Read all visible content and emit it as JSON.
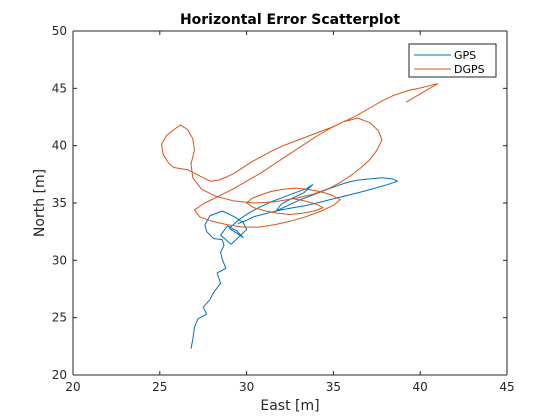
{
  "chart_data": {
    "type": "line",
    "title": "Horizontal Error Scatterplot",
    "xlabel": "East [m]",
    "ylabel": "North [m]",
    "xlim": [
      20,
      45
    ],
    "ylim": [
      20,
      50
    ],
    "xticks": [
      20,
      25,
      30,
      35,
      40,
      45
    ],
    "yticks": [
      20,
      25,
      30,
      35,
      40,
      45,
      50
    ],
    "grid": false,
    "legend_position": "top-right",
    "series": [
      {
        "name": "GPS",
        "color": "#0072BD",
        "x": [
          26.8,
          26.9,
          27.0,
          27.2,
          27.7,
          27.5,
          27.9,
          28.1,
          28.5,
          28.3,
          28.8,
          28.6,
          28.5,
          28.7,
          28.6,
          28.1,
          27.7,
          27.6,
          27.9,
          28.6,
          29.3,
          29.8,
          30.0,
          29.6,
          29.1,
          28.5,
          28.9,
          29.4,
          29.8,
          29.0,
          29.6,
          30.1,
          30.7,
          31.4,
          32.1,
          32.8,
          33.4,
          33.8,
          33.3,
          32.6,
          32.0,
          31.7,
          32.4,
          33.1,
          33.8,
          34.5,
          35.2,
          35.8,
          36.4,
          37.1,
          37.8,
          38.4,
          38.7,
          38.1,
          37.4,
          36.7,
          35.9,
          35.1,
          34.3,
          33.5,
          32.7,
          32.0,
          31.4,
          30.9,
          30.4,
          30.0,
          29.5
        ],
        "y": [
          22.3,
          23.1,
          24.2,
          24.9,
          25.3,
          25.9,
          26.6,
          27.2,
          28.0,
          28.9,
          29.3,
          30.1,
          30.7,
          31.3,
          31.8,
          31.9,
          32.5,
          33.1,
          33.9,
          34.3,
          33.8,
          33.3,
          32.7,
          32.1,
          31.4,
          32.2,
          33.0,
          32.6,
          32.0,
          32.8,
          33.6,
          34.1,
          34.6,
          35.1,
          35.5,
          35.9,
          36.2,
          36.6,
          35.9,
          35.4,
          34.9,
          34.3,
          34.8,
          35.3,
          35.7,
          36.1,
          36.5,
          36.8,
          37.0,
          37.1,
          37.2,
          37.1,
          36.9,
          36.6,
          36.3,
          36.0,
          35.7,
          35.4,
          35.1,
          34.8,
          34.6,
          34.4,
          34.2,
          34.0,
          33.8,
          33.5,
          33.2
        ]
      },
      {
        "name": "DGPS",
        "color": "#D95319",
        "x": [
          39.2,
          40.1,
          41.0,
          40.2,
          39.3,
          38.5,
          37.8,
          37.0,
          36.3,
          35.6,
          34.9,
          34.2,
          33.5,
          32.8,
          32.1,
          31.4,
          30.8,
          30.3,
          29.9,
          29.6,
          29.3,
          28.9,
          28.4,
          27.9,
          27.5,
          27.0,
          26.6,
          26.2,
          25.8,
          25.5,
          25.2,
          25.1,
          25.4,
          25.9,
          26.2,
          26.6,
          26.9,
          27.0,
          26.8,
          26.9,
          27.4,
          28.2,
          29.2,
          30.4,
          31.6,
          32.8,
          33.9,
          34.8,
          35.4,
          36.0,
          36.6,
          37.1,
          37.5,
          37.8,
          37.6,
          37.1,
          36.4,
          35.6,
          34.8,
          34.0,
          33.2,
          32.4,
          31.6,
          30.8,
          30.0,
          29.2,
          28.4,
          27.6,
          27.0,
          27.3,
          28.0,
          28.9,
          29.8,
          30.7,
          31.6,
          32.5,
          33.4,
          34.3,
          35.0,
          35.4,
          34.9,
          34.2,
          33.5,
          32.8,
          32.1,
          31.4,
          30.8,
          30.3,
          30.0,
          30.4,
          31.1,
          31.8,
          32.5,
          33.2,
          33.9,
          34.4,
          34.0,
          33.3,
          32.6
        ],
        "y": [
          43.8,
          44.6,
          45.4,
          45.1,
          44.8,
          44.4,
          43.9,
          43.2,
          42.6,
          42.1,
          41.6,
          41.2,
          40.8,
          40.4,
          40.0,
          39.5,
          39.0,
          38.6,
          38.2,
          37.9,
          37.6,
          37.3,
          37.0,
          36.9,
          37.2,
          37.6,
          37.9,
          38.0,
          38.1,
          38.5,
          39.2,
          40.1,
          40.9,
          41.5,
          41.8,
          41.4,
          40.6,
          39.6,
          38.4,
          37.2,
          36.2,
          35.6,
          35.2,
          35.0,
          35.1,
          35.4,
          35.8,
          36.3,
          36.8,
          37.4,
          38.1,
          38.8,
          39.6,
          40.5,
          41.3,
          42.0,
          42.4,
          42.1,
          41.5,
          40.8,
          40.0,
          39.2,
          38.4,
          37.6,
          36.9,
          36.2,
          35.6,
          35.0,
          34.4,
          33.8,
          33.4,
          33.1,
          32.9,
          32.9,
          33.1,
          33.4,
          33.8,
          34.3,
          34.8,
          35.3,
          35.7,
          36.0,
          36.2,
          36.3,
          36.2,
          36.0,
          35.7,
          35.4,
          35.0,
          34.6,
          34.3,
          34.1,
          34.0,
          34.1,
          34.3,
          34.6,
          34.9,
          35.2,
          35.4
        ]
      }
    ]
  }
}
